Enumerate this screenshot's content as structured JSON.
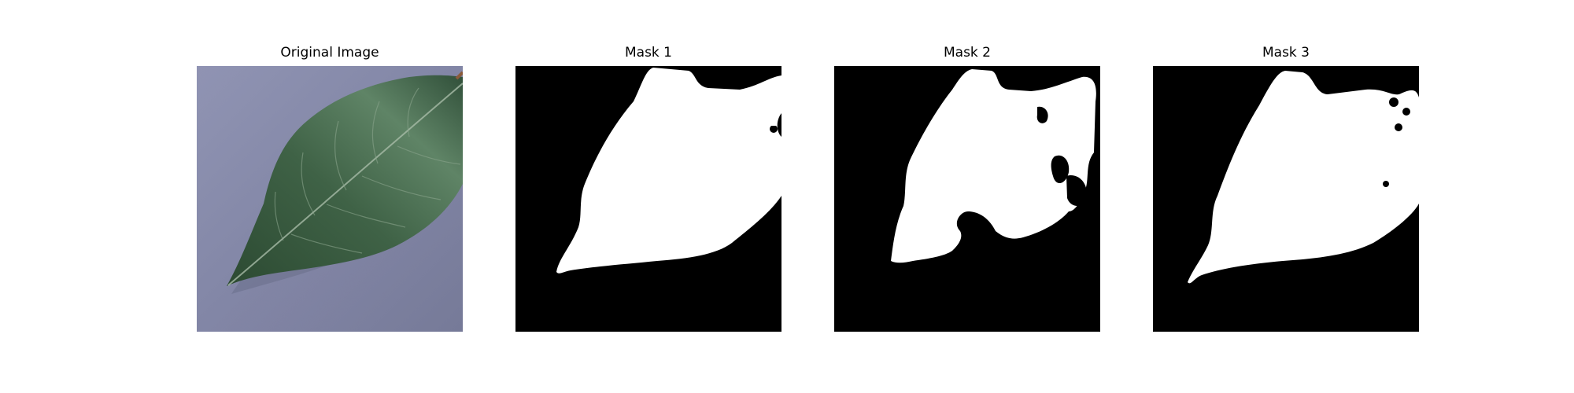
{
  "panels": [
    {
      "title": "Original Image",
      "kind": "photo",
      "subject": "leaf"
    },
    {
      "title": "Mask 1",
      "kind": "mask"
    },
    {
      "title": "Mask 2",
      "kind": "mask"
    },
    {
      "title": "Mask 3",
      "kind": "mask"
    }
  ],
  "colors": {
    "background_gray": "#7e82a3",
    "leaf_dark": "#2f4f35",
    "leaf_mid": "#4a6a50",
    "leaf_light": "#7d9a80",
    "mask_foreground": "#ffffff",
    "mask_background": "#000000"
  }
}
